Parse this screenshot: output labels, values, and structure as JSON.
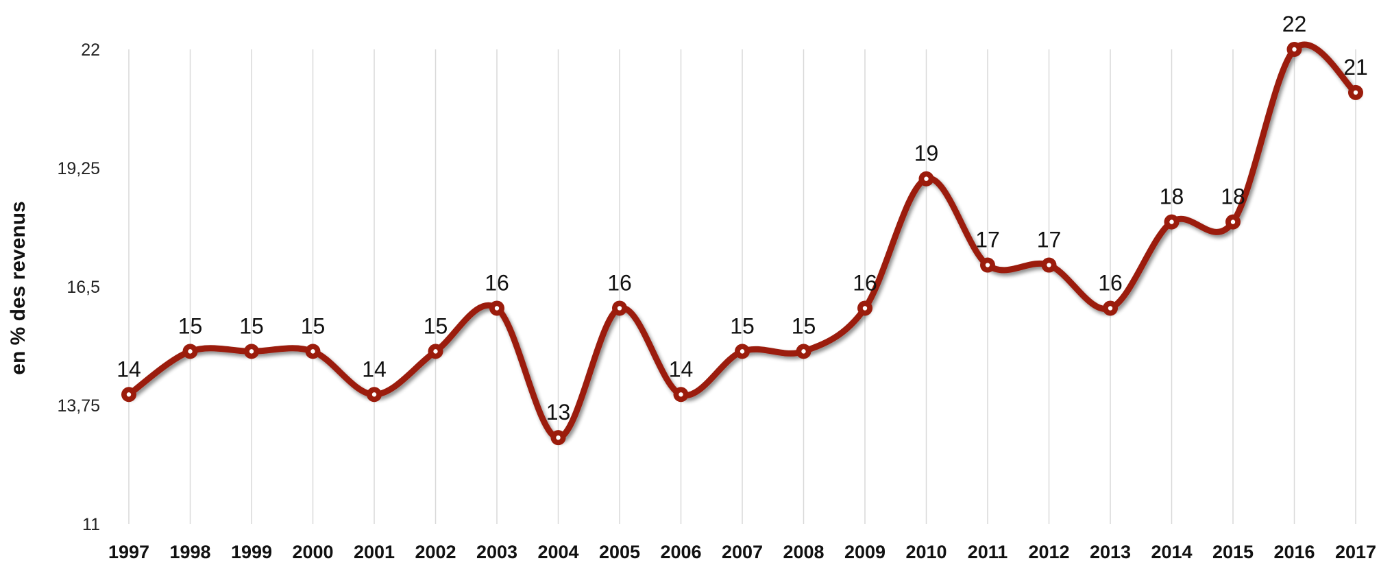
{
  "chart_data": {
    "type": "line",
    "title": "",
    "xlabel": "",
    "ylabel": "en % des revenus",
    "categories": [
      "1997",
      "1998",
      "1999",
      "2000",
      "2001",
      "2002",
      "2003",
      "2004",
      "2005",
      "2006",
      "2007",
      "2008",
      "2009",
      "2010",
      "2011",
      "2012",
      "2013",
      "2014",
      "2015",
      "2016",
      "2017"
    ],
    "series": [
      {
        "values": [
          14,
          15,
          15,
          15,
          14,
          15,
          16,
          13,
          16,
          14,
          15,
          15,
          16,
          19,
          17,
          17,
          16,
          18,
          18,
          22,
          21
        ]
      }
    ],
    "data_labels": [
      "14",
      "15",
      "15",
      "15",
      "14",
      "15",
      "16",
      "13",
      "16",
      "14",
      "15",
      "15",
      "16",
      "19",
      "17",
      "17",
      "16",
      "18",
      "18",
      "22",
      "21"
    ],
    "ylim": [
      11,
      22
    ],
    "yticks": [
      11,
      13.75,
      16.5,
      19.25,
      22
    ],
    "ytick_labels": [
      "11",
      "13,75",
      "16,5",
      "19,25",
      "22"
    ],
    "grid": "vertical",
    "smooth": true,
    "legend": "none",
    "colors": {
      "line": "#9b1c0c",
      "marker_center": "#ffffff",
      "grid": "#d9d9d9"
    }
  }
}
